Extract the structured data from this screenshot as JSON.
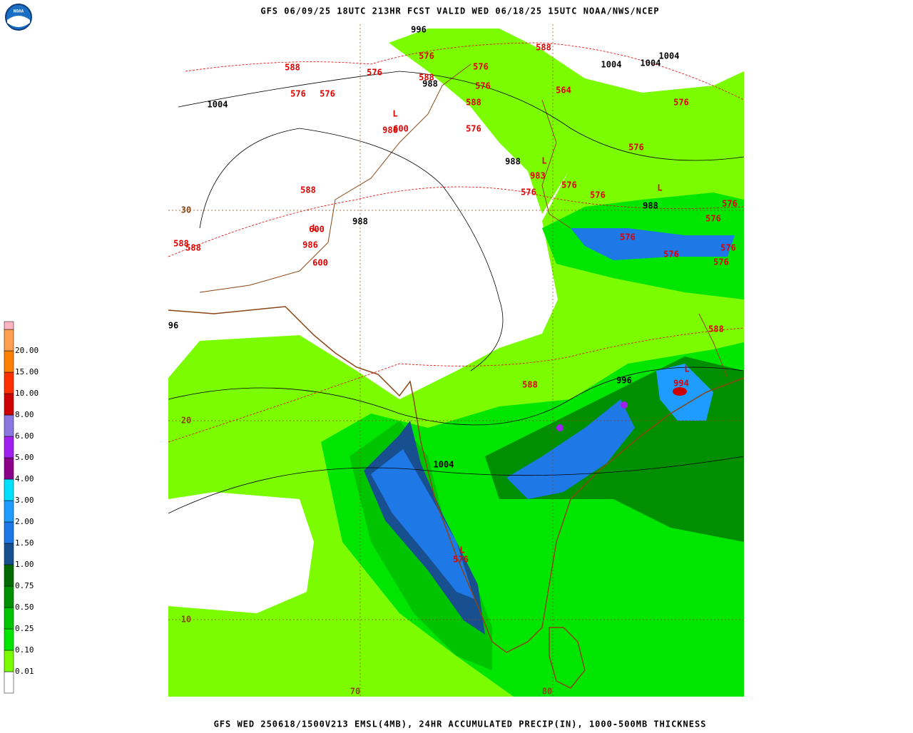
{
  "header": {
    "title": "GFS 06/09/25 18UTC 213HR FCST VALID WED 06/18/25 15UTC NOAA/NWS/NCEP"
  },
  "footer": {
    "caption": "GFS WED 250618/1500V213 EMSL(4MB), 24HR ACCUMULATED PRECIP(IN), 1000-500MB THICKNESS"
  },
  "logo": {
    "text": "NOAA"
  },
  "legend": {
    "entries": [
      {
        "label": "0.01",
        "color": "#7cfc00"
      },
      {
        "label": "0.10",
        "color": "#00e600"
      },
      {
        "label": "0.25",
        "color": "#00c400"
      },
      {
        "label": "0.50",
        "color": "#008f00"
      },
      {
        "label": "0.75",
        "color": "#006a00"
      },
      {
        "label": "1.00",
        "color": "#18508f"
      },
      {
        "label": "1.50",
        "color": "#1e78e6"
      },
      {
        "label": "2.00",
        "color": "#1e9cff"
      },
      {
        "label": "3.00",
        "color": "#00e0ff"
      },
      {
        "label": "4.00",
        "color": "#8b0089"
      },
      {
        "label": "5.00",
        "color": "#a020f0"
      },
      {
        "label": "6.00",
        "color": "#8a78e0"
      },
      {
        "label": "8.00",
        "color": "#cc0000"
      },
      {
        "label": "10.00",
        "color": "#ff3000"
      },
      {
        "label": "15.00",
        "color": "#ff8000"
      },
      {
        "label": "20.00",
        "color": "#ffa050"
      }
    ],
    "base_color": "#ffffff",
    "top_color": "#ffb4c4"
  },
  "map": {
    "latitude_labels": [
      "30",
      "20",
      "10"
    ],
    "longitude_labels": [
      "70",
      "80"
    ],
    "pressure_labels": [
      "996",
      "988",
      "1004",
      "1004",
      "1004",
      "1004",
      "988",
      "988",
      "988",
      "996",
      "1004",
      "96"
    ],
    "thickness_labels": [
      "588",
      "576",
      "576",
      "576",
      "576",
      "588",
      "576",
      "576",
      "588",
      "576",
      "588",
      "564",
      "576",
      "576",
      "576",
      "576",
      "576",
      "600",
      "600",
      "600",
      "588",
      "588",
      "588",
      "576",
      "576",
      "576",
      "576",
      "576",
      "576",
      "588",
      "588",
      "576"
    ],
    "low_values": [
      "986",
      "983",
      "986",
      "994"
    ],
    "low_symbols": [
      "L",
      "L",
      "L",
      "L",
      "L",
      "L"
    ]
  }
}
